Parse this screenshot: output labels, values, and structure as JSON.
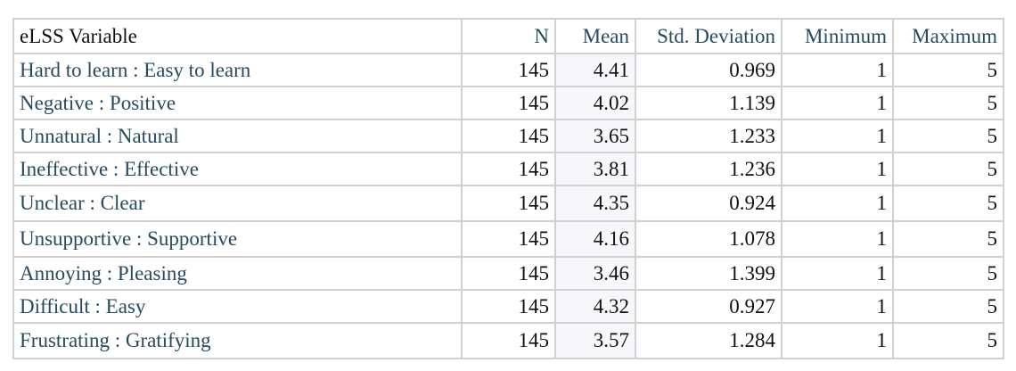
{
  "table": {
    "headers": [
      "eLSS Variable",
      "N",
      "Mean",
      "Std. Deviation",
      "Minimum",
      "Maximum"
    ],
    "rows": [
      [
        "Hard to learn : Easy to learn",
        "145",
        "4.41",
        "0.969",
        "1",
        "5"
      ],
      [
        "Negative : Positive",
        "145",
        "4.02",
        "1.139",
        "1",
        "5"
      ],
      [
        "Unnatural : Natural",
        "145",
        "3.65",
        "1.233",
        "1",
        "5"
      ],
      [
        "Ineffective : Effective",
        "145",
        "3.81",
        "1.236",
        "1",
        "5"
      ],
      [
        "Unclear : Clear",
        "145",
        "4.35",
        "0.924",
        "1",
        "5"
      ],
      [
        "Unsupportive : Supportive",
        "145",
        "4.16",
        "1.078",
        "1",
        "5"
      ],
      [
        "Annoying : Pleasing",
        "145",
        "3.46",
        "1.399",
        "1",
        "5"
      ],
      [
        "Difficult : Easy",
        "145",
        "4.32",
        "0.927",
        "1",
        "5"
      ],
      [
        "Frustrating : Gratifying",
        "145",
        "3.57",
        "1.284",
        "1",
        "5"
      ]
    ]
  },
  "colors": {
    "label_text": "#264a60",
    "mean_column_bg": "#f7f7fb",
    "border": "#d0d0d0"
  }
}
